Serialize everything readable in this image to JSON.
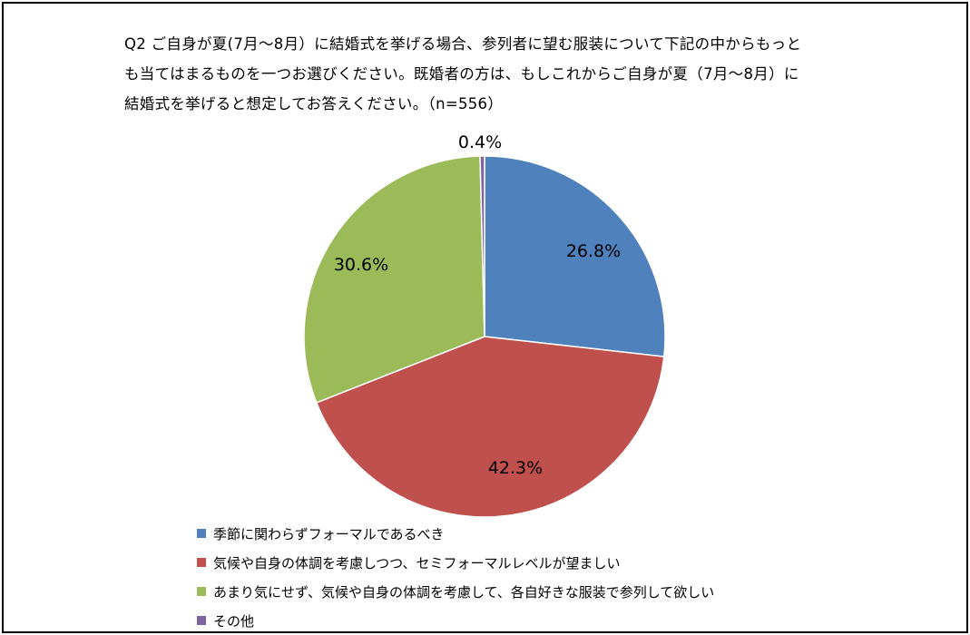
{
  "title_lines": [
    "Q2 ご自身が夏(7月～8月）に結婚式を挙げる場合、参列者に望む服装について下記の中からもっと",
    "も当てはまるものを一つお選びください。既婚者の方は、もしこれからご自身が夏（7月～8月）に",
    "結婚式を挙げると想定してお答えください。（n=556）"
  ],
  "chart_data": {
    "type": "pie",
    "slices": [
      {
        "name": "季節に関わらずフォーマルであるべき",
        "value": 26.8,
        "label": "26.8%",
        "color": "#4f81bd"
      },
      {
        "name": "気候や自身の体調を考慮しつつ、セミフォーマルレベルが望ましい",
        "value": 42.3,
        "label": "42.3%",
        "color": "#c0504d"
      },
      {
        "name": "あまり気にせず、気候や自身の体調を考慮して、各自好きな服装で参列して欲しい",
        "value": 30.6,
        "label": "30.6%",
        "color": "#9bbb59"
      },
      {
        "name": "その他",
        "value": 0.4,
        "label": "0.4%",
        "color": "#8064a2"
      }
    ],
    "start_angle_deg": 0,
    "direction": "clockwise",
    "legend_position": "bottom-left"
  }
}
